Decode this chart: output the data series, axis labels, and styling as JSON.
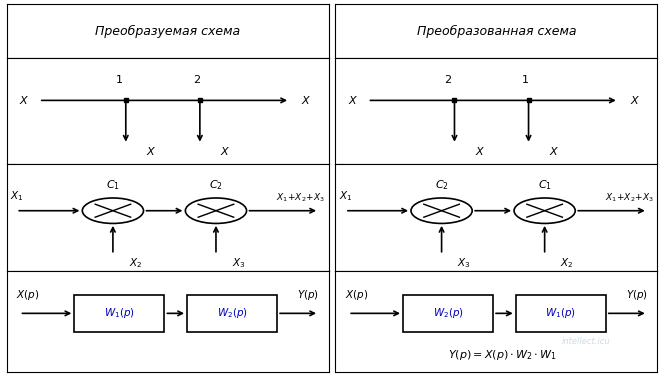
{
  "col1_header": "Преобразуемая схема",
  "col2_header": "Преобразованная схема",
  "bg_color": "#ffffff",
  "border_color": "#000000",
  "lw": 1.2,
  "row_tops": [
    0.99,
    0.845,
    0.565,
    0.28
  ],
  "row_bottoms": [
    0.845,
    0.565,
    0.28,
    0.01
  ],
  "col_lefts": [
    0.01,
    0.505
  ],
  "col_rights": [
    0.495,
    0.99
  ]
}
